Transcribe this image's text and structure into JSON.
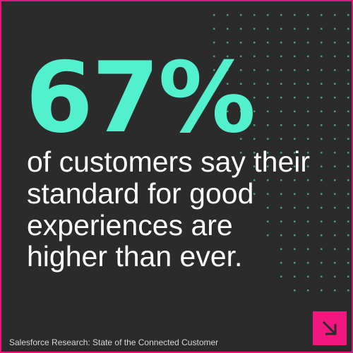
{
  "stat": "67%",
  "statement": [
    "of customers say their",
    "standard for good",
    "experiences are",
    "higher than ever."
  ],
  "source": "Salesforce Research: State of the Connected Customer"
}
